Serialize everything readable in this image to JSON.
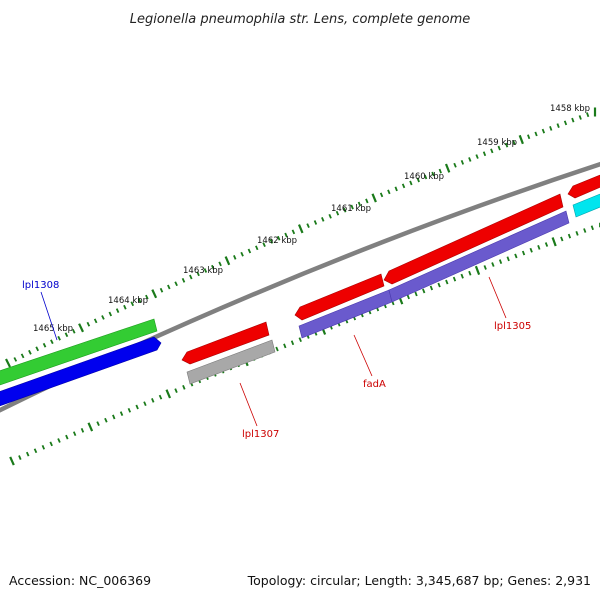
{
  "title": "Legionella pneumophila str. Lens, complete genome",
  "footer": {
    "accession": "Accession: NC_006369",
    "summary": "Topology: circular; Length: 3,345,687 bp; Genes: 2,931"
  },
  "ruler": {
    "labels": [
      "1458 kbp",
      "1459 kbp",
      "1460 kbp",
      "1461 kbp",
      "1462 kbp",
      "1463 kbp",
      "1464 kbp",
      "1465 kbp"
    ]
  },
  "genes": [
    {
      "label": "lpl1308",
      "color": "#0000cc"
    },
    {
      "label": "lpl1307",
      "color": "#cc0000"
    },
    {
      "label": "fadA",
      "color": "#cc0000"
    },
    {
      "label": "lpl1305",
      "color": "#cc0000"
    }
  ],
  "colors": {
    "red_feature": "#ee0000",
    "green_feature": "#33cc33",
    "blue_feature": "#0000ee",
    "purple_feature": "#6a5acd",
    "gray_feature": "#a8a8a8",
    "cyan_feature": "#00e5ee",
    "backbone": "#808080",
    "ticks": "#1a7a1a"
  }
}
